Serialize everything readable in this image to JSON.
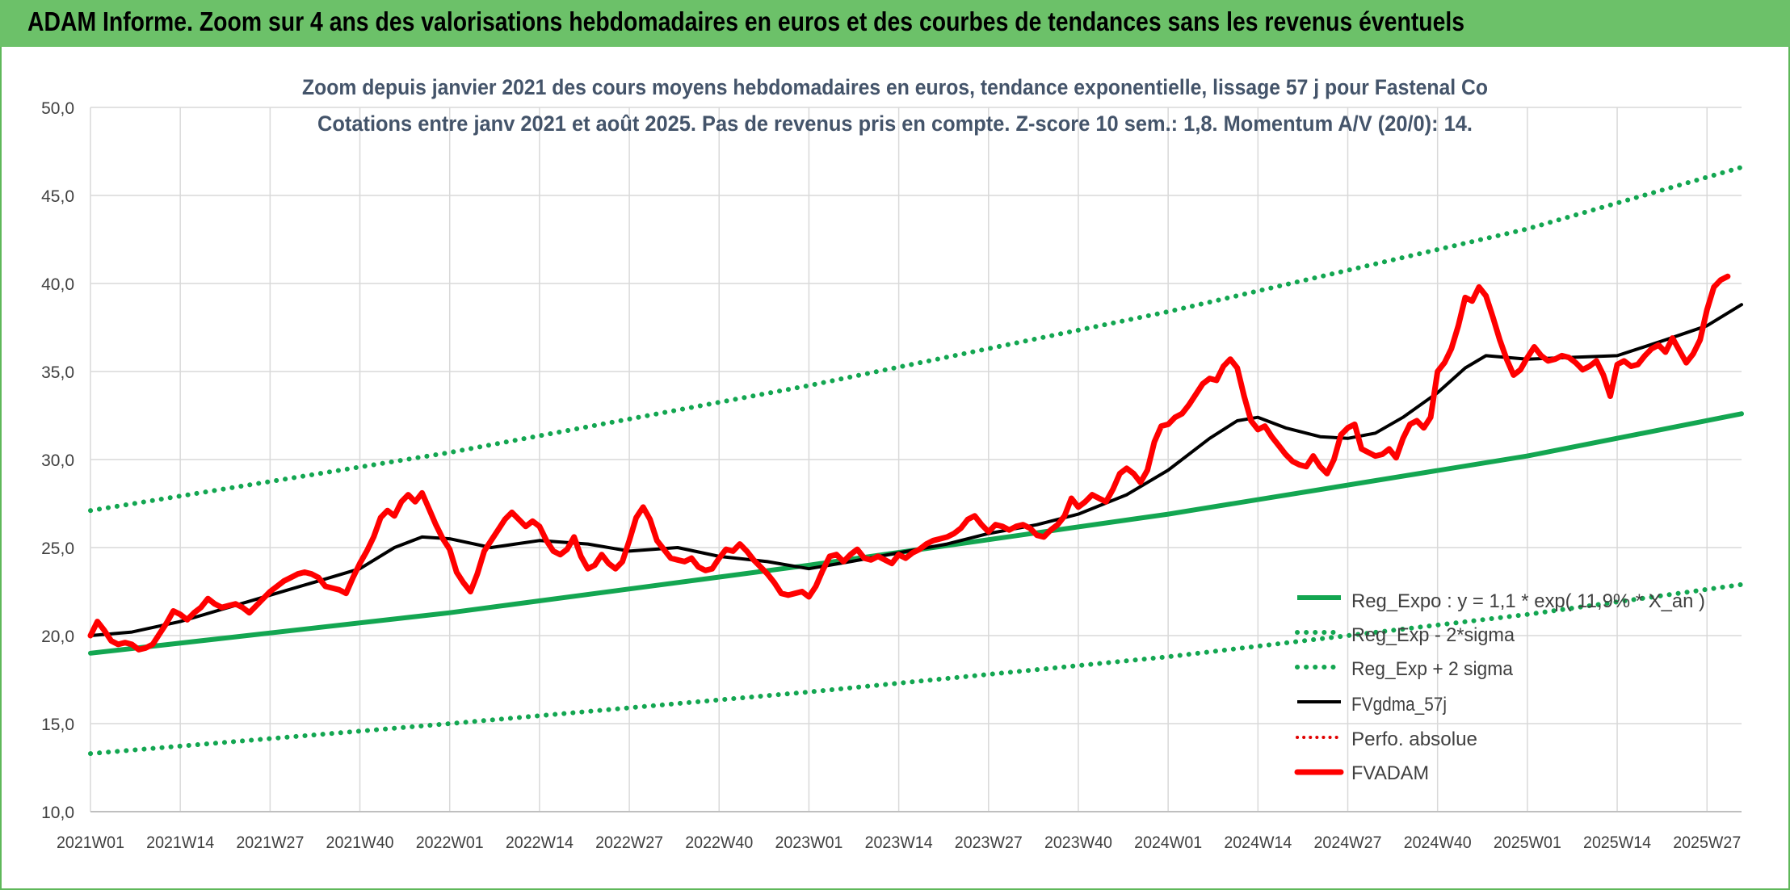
{
  "banner": {
    "title": "ADAM Informe. Zoom sur 4 ans des valorisations hebdomadaires en euros et des courbes de tendances sans les revenus éventuels"
  },
  "chart_data": {
    "type": "line",
    "subtitle_line1": "Zoom depuis janvier 2021 des cours moyens hebdomadaires en euros, tendance exponentielle, lissage 57 j pour Fastenal Co",
    "subtitle_line2": "Cotations entre janv 2021 et août 2025. Pas de revenus pris en compte. Z-score 10 sem.: 1,8. Momentum A/V (20/0): 14.",
    "ylim": [
      10,
      50
    ],
    "y_ticks": [
      "10,0",
      "15,0",
      "20,0",
      "25,0",
      "30,0",
      "35,0",
      "40,0",
      "45,0",
      "50,0"
    ],
    "x_ticks": [
      "2021W01",
      "2021W14",
      "2021W27",
      "2021W40",
      "2022W01",
      "2022W14",
      "2022W27",
      "2022W40",
      "2023W01",
      "2023W14",
      "2023W27",
      "2023W40",
      "2024W01",
      "2024W14",
      "2024W27",
      "2024W40",
      "2025W01",
      "2025W14",
      "2025W27"
    ],
    "x_tick_week_index": [
      0,
      13,
      26,
      39,
      52,
      65,
      78,
      91,
      104,
      117,
      130,
      143,
      156,
      169,
      182,
      195,
      208,
      221,
      234
    ],
    "n_weeks": 240,
    "grid": true,
    "legend_position": "bottom-right",
    "colors": {
      "reg_expo": "#13a651",
      "reg_minus": "#13a651",
      "reg_plus": "#13a651",
      "fvgdma": "#000000",
      "perfo": "#e00000",
      "fvadam": "#ff0000"
    },
    "series": [
      {
        "name": "Reg_Expo : y = 1,1 * exp( 11,9% * X_an )",
        "key": "reg_expo",
        "style": "solid",
        "points": [
          [
            0,
            19.0
          ],
          [
            52,
            21.3
          ],
          [
            104,
            24.0
          ],
          [
            156,
            26.9
          ],
          [
            208,
            30.2
          ],
          [
            239,
            32.6
          ]
        ]
      },
      {
        "name": "Reg_Exp - 2*sigma",
        "key": "reg_minus",
        "style": "dotted",
        "points": [
          [
            0,
            13.3
          ],
          [
            52,
            15.0
          ],
          [
            104,
            16.8
          ],
          [
            156,
            18.8
          ],
          [
            208,
            21.2
          ],
          [
            239,
            22.9
          ]
        ]
      },
      {
        "name": "Reg_Exp + 2 sigma",
        "key": "reg_plus",
        "style": "dotted",
        "points": [
          [
            0,
            27.1
          ],
          [
            52,
            30.4
          ],
          [
            104,
            34.2
          ],
          [
            156,
            38.4
          ],
          [
            208,
            43.1
          ],
          [
            239,
            46.6
          ]
        ]
      },
      {
        "name": "FVgdma_57j",
        "key": "fvgdma",
        "style": "solid",
        "points": [
          [
            0,
            20.0
          ],
          [
            6,
            20.2
          ],
          [
            13,
            20.8
          ],
          [
            20,
            21.6
          ],
          [
            26,
            22.3
          ],
          [
            33,
            23.1
          ],
          [
            39,
            23.8
          ],
          [
            44,
            25.0
          ],
          [
            48,
            25.6
          ],
          [
            52,
            25.5
          ],
          [
            58,
            25.0
          ],
          [
            65,
            25.4
          ],
          [
            72,
            25.2
          ],
          [
            78,
            24.8
          ],
          [
            85,
            25.0
          ],
          [
            91,
            24.5
          ],
          [
            98,
            24.2
          ],
          [
            104,
            23.8
          ],
          [
            110,
            24.2
          ],
          [
            117,
            24.7
          ],
          [
            124,
            25.2
          ],
          [
            130,
            25.8
          ],
          [
            137,
            26.3
          ],
          [
            143,
            26.9
          ],
          [
            150,
            28.0
          ],
          [
            156,
            29.4
          ],
          [
            162,
            31.2
          ],
          [
            166,
            32.2
          ],
          [
            169,
            32.4
          ],
          [
            173,
            31.8
          ],
          [
            178,
            31.3
          ],
          [
            182,
            31.2
          ],
          [
            186,
            31.5
          ],
          [
            190,
            32.4
          ],
          [
            195,
            33.8
          ],
          [
            199,
            35.2
          ],
          [
            202,
            35.9
          ],
          [
            208,
            35.7
          ],
          [
            214,
            35.8
          ],
          [
            221,
            35.9
          ],
          [
            228,
            36.8
          ],
          [
            234,
            37.6
          ],
          [
            239,
            38.8
          ]
        ]
      },
      {
        "name": "Perfo. absolue",
        "key": "perfo",
        "style": "dotted",
        "points": []
      },
      {
        "name": "FVADAM",
        "key": "fvadam",
        "style": "solid",
        "points": [
          [
            0,
            20.0
          ],
          [
            1,
            20.8
          ],
          [
            2,
            20.3
          ],
          [
            3,
            19.7
          ],
          [
            4,
            19.5
          ],
          [
            5,
            19.6
          ],
          [
            6,
            19.5
          ],
          [
            7,
            19.2
          ],
          [
            8,
            19.3
          ],
          [
            9,
            19.5
          ],
          [
            10,
            20.1
          ],
          [
            11,
            20.7
          ],
          [
            12,
            21.4
          ],
          [
            13,
            21.2
          ],
          [
            14,
            20.9
          ],
          [
            15,
            21.3
          ],
          [
            16,
            21.6
          ],
          [
            17,
            22.1
          ],
          [
            18,
            21.8
          ],
          [
            19,
            21.6
          ],
          [
            20,
            21.7
          ],
          [
            21,
            21.8
          ],
          [
            22,
            21.6
          ],
          [
            23,
            21.3
          ],
          [
            24,
            21.7
          ],
          [
            25,
            22.1
          ],
          [
            26,
            22.5
          ],
          [
            27,
            22.8
          ],
          [
            28,
            23.1
          ],
          [
            29,
            23.3
          ],
          [
            30,
            23.5
          ],
          [
            31,
            23.6
          ],
          [
            32,
            23.5
          ],
          [
            33,
            23.3
          ],
          [
            34,
            22.8
          ],
          [
            35,
            22.7
          ],
          [
            36,
            22.6
          ],
          [
            37,
            22.4
          ],
          [
            38,
            23.3
          ],
          [
            39,
            24.1
          ],
          [
            40,
            24.8
          ],
          [
            41,
            25.6
          ],
          [
            42,
            26.7
          ],
          [
            43,
            27.1
          ],
          [
            44,
            26.8
          ],
          [
            45,
            27.6
          ],
          [
            46,
            28.0
          ],
          [
            47,
            27.6
          ],
          [
            48,
            28.1
          ],
          [
            49,
            27.2
          ],
          [
            50,
            26.3
          ],
          [
            51,
            25.5
          ],
          [
            52,
            24.9
          ],
          [
            53,
            23.6
          ],
          [
            54,
            23.0
          ],
          [
            55,
            22.5
          ],
          [
            56,
            23.5
          ],
          [
            57,
            24.8
          ],
          [
            58,
            25.4
          ],
          [
            59,
            26.0
          ],
          [
            60,
            26.6
          ],
          [
            61,
            27.0
          ],
          [
            62,
            26.6
          ],
          [
            63,
            26.2
          ],
          [
            64,
            26.5
          ],
          [
            65,
            26.2
          ],
          [
            66,
            25.4
          ],
          [
            67,
            24.8
          ],
          [
            68,
            24.6
          ],
          [
            69,
            24.9
          ],
          [
            70,
            25.6
          ],
          [
            71,
            24.5
          ],
          [
            72,
            23.8
          ],
          [
            73,
            24.0
          ],
          [
            74,
            24.6
          ],
          [
            75,
            24.1
          ],
          [
            76,
            23.8
          ],
          [
            77,
            24.2
          ],
          [
            78,
            25.4
          ],
          [
            79,
            26.7
          ],
          [
            80,
            27.3
          ],
          [
            81,
            26.6
          ],
          [
            82,
            25.4
          ],
          [
            83,
            24.9
          ],
          [
            84,
            24.4
          ],
          [
            85,
            24.3
          ],
          [
            86,
            24.2
          ],
          [
            87,
            24.4
          ],
          [
            88,
            23.9
          ],
          [
            89,
            23.7
          ],
          [
            90,
            23.8
          ],
          [
            91,
            24.4
          ],
          [
            92,
            24.9
          ],
          [
            93,
            24.8
          ],
          [
            94,
            25.2
          ],
          [
            95,
            24.8
          ],
          [
            96,
            24.3
          ],
          [
            97,
            23.9
          ],
          [
            98,
            23.5
          ],
          [
            99,
            23.0
          ],
          [
            100,
            22.4
          ],
          [
            101,
            22.3
          ],
          [
            102,
            22.4
          ],
          [
            103,
            22.5
          ],
          [
            104,
            22.2
          ],
          [
            105,
            22.8
          ],
          [
            106,
            23.7
          ],
          [
            107,
            24.5
          ],
          [
            108,
            24.6
          ],
          [
            109,
            24.2
          ],
          [
            110,
            24.6
          ],
          [
            111,
            24.9
          ],
          [
            112,
            24.4
          ],
          [
            113,
            24.3
          ],
          [
            114,
            24.5
          ],
          [
            115,
            24.3
          ],
          [
            116,
            24.1
          ],
          [
            117,
            24.6
          ],
          [
            118,
            24.4
          ],
          [
            119,
            24.7
          ],
          [
            120,
            24.9
          ],
          [
            121,
            25.2
          ],
          [
            122,
            25.4
          ],
          [
            123,
            25.5
          ],
          [
            124,
            25.6
          ],
          [
            125,
            25.8
          ],
          [
            126,
            26.1
          ],
          [
            127,
            26.6
          ],
          [
            128,
            26.8
          ],
          [
            129,
            26.3
          ],
          [
            130,
            25.9
          ],
          [
            131,
            26.3
          ],
          [
            132,
            26.2
          ],
          [
            133,
            26.0
          ],
          [
            134,
            26.2
          ],
          [
            135,
            26.3
          ],
          [
            136,
            26.1
          ],
          [
            137,
            25.7
          ],
          [
            138,
            25.6
          ],
          [
            139,
            26.0
          ],
          [
            140,
            26.3
          ],
          [
            141,
            26.8
          ],
          [
            142,
            27.8
          ],
          [
            143,
            27.3
          ],
          [
            144,
            27.6
          ],
          [
            145,
            28.0
          ],
          [
            146,
            27.8
          ],
          [
            147,
            27.6
          ],
          [
            148,
            28.3
          ],
          [
            149,
            29.2
          ],
          [
            150,
            29.5
          ],
          [
            151,
            29.2
          ],
          [
            152,
            28.7
          ],
          [
            153,
            29.4
          ],
          [
            154,
            31.0
          ],
          [
            155,
            31.9
          ],
          [
            156,
            32.0
          ],
          [
            157,
            32.4
          ],
          [
            158,
            32.6
          ],
          [
            159,
            33.1
          ],
          [
            160,
            33.7
          ],
          [
            161,
            34.3
          ],
          [
            162,
            34.6
          ],
          [
            163,
            34.5
          ],
          [
            164,
            35.3
          ],
          [
            165,
            35.7
          ],
          [
            166,
            35.2
          ],
          [
            167,
            33.6
          ],
          [
            168,
            32.2
          ],
          [
            169,
            31.7
          ],
          [
            170,
            31.9
          ],
          [
            171,
            31.3
          ],
          [
            172,
            30.8
          ],
          [
            173,
            30.3
          ],
          [
            174,
            29.9
          ],
          [
            175,
            29.7
          ],
          [
            176,
            29.6
          ],
          [
            177,
            30.2
          ],
          [
            178,
            29.6
          ],
          [
            179,
            29.2
          ],
          [
            180,
            30.0
          ],
          [
            181,
            31.4
          ],
          [
            182,
            31.8
          ],
          [
            183,
            32.0
          ],
          [
            184,
            30.6
          ],
          [
            185,
            30.4
          ],
          [
            186,
            30.2
          ],
          [
            187,
            30.3
          ],
          [
            188,
            30.6
          ],
          [
            189,
            30.1
          ],
          [
            190,
            31.2
          ],
          [
            191,
            32.0
          ],
          [
            192,
            32.2
          ],
          [
            193,
            31.8
          ],
          [
            194,
            32.4
          ],
          [
            195,
            35.0
          ],
          [
            196,
            35.5
          ],
          [
            197,
            36.3
          ],
          [
            198,
            37.6
          ],
          [
            199,
            39.2
          ],
          [
            200,
            39.0
          ],
          [
            201,
            39.8
          ],
          [
            202,
            39.3
          ],
          [
            203,
            38.1
          ],
          [
            204,
            36.8
          ],
          [
            205,
            35.7
          ],
          [
            206,
            34.8
          ],
          [
            207,
            35.1
          ],
          [
            208,
            35.8
          ],
          [
            209,
            36.4
          ],
          [
            210,
            35.9
          ],
          [
            211,
            35.6
          ],
          [
            212,
            35.7
          ],
          [
            213,
            35.9
          ],
          [
            214,
            35.8
          ],
          [
            215,
            35.5
          ],
          [
            216,
            35.1
          ],
          [
            217,
            35.3
          ],
          [
            218,
            35.6
          ],
          [
            219,
            34.8
          ],
          [
            220,
            33.6
          ],
          [
            221,
            35.4
          ],
          [
            222,
            35.6
          ],
          [
            223,
            35.3
          ],
          [
            224,
            35.4
          ],
          [
            225,
            35.9
          ],
          [
            226,
            36.3
          ],
          [
            227,
            36.5
          ],
          [
            228,
            36.1
          ],
          [
            229,
            36.9
          ],
          [
            230,
            36.2
          ],
          [
            231,
            35.5
          ],
          [
            232,
            36.0
          ],
          [
            233,
            36.8
          ],
          [
            234,
            38.5
          ],
          [
            235,
            39.8
          ],
          [
            236,
            40.2
          ],
          [
            237,
            40.4
          ]
        ]
      }
    ]
  }
}
